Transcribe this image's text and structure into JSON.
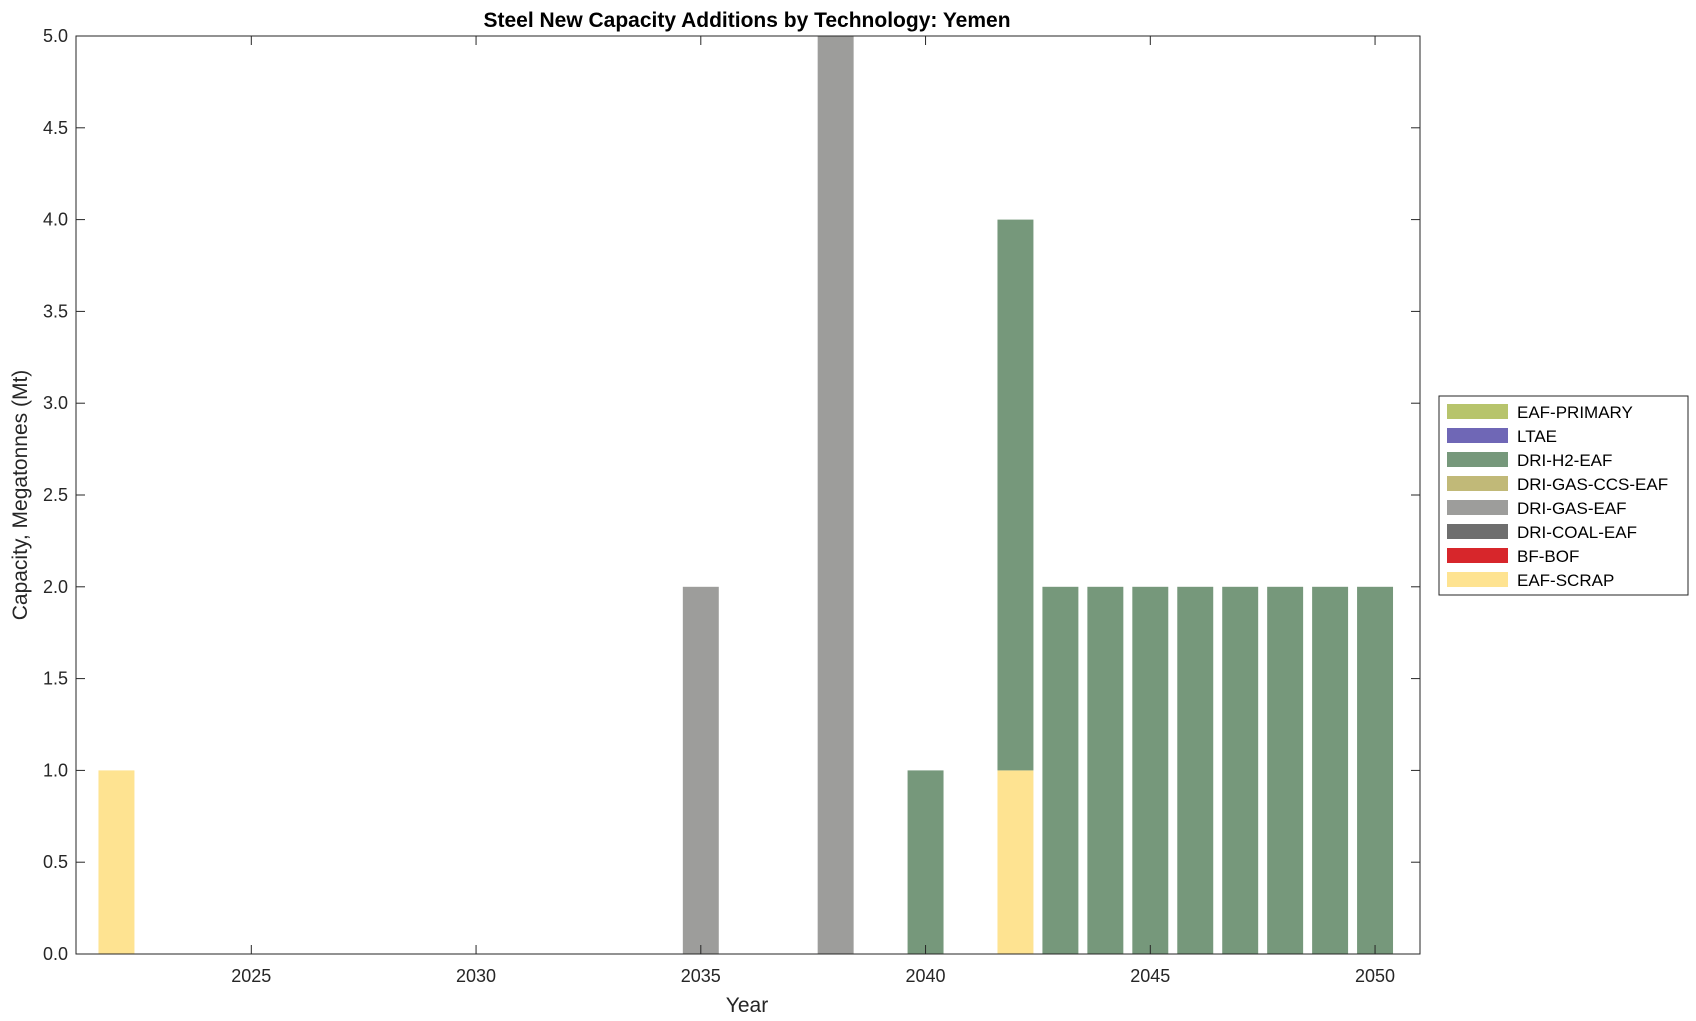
{
  "chart_data": {
    "type": "bar",
    "stacked": true,
    "title": "Steel New Capacity Additions by Technology: Yemen",
    "xlabel": "Year",
    "ylabel": "Capacity, Megatonnes (Mt)",
    "xlim": [
      2021.1,
      2051
    ],
    "ylim": [
      0,
      5
    ],
    "xticks": [
      2025,
      2030,
      2035,
      2040,
      2045,
      2050
    ],
    "yticks": [
      0,
      0.5,
      1,
      1.5,
      2,
      2.5,
      3,
      3.5,
      4,
      4.5,
      5
    ],
    "ytick_labels": [
      "0.0",
      "0.5",
      "1.0",
      "1.5",
      "2.0",
      "2.5",
      "3.0",
      "3.5",
      "4.0",
      "4.5",
      "5.0"
    ],
    "grid": false,
    "legend_position": "right",
    "categories": [
      2022,
      2023,
      2024,
      2025,
      2026,
      2027,
      2028,
      2029,
      2030,
      2031,
      2032,
      2033,
      2034,
      2035,
      2036,
      2037,
      2038,
      2039,
      2040,
      2041,
      2042,
      2043,
      2044,
      2045,
      2046,
      2047,
      2048,
      2049,
      2050
    ],
    "series": [
      {
        "name": "EAF-SCRAP",
        "color": "#fee391",
        "values": [
          1,
          0,
          0,
          0,
          0,
          0,
          0,
          0,
          0,
          0,
          0,
          0,
          0,
          0,
          0,
          0,
          0,
          0,
          0,
          0,
          1,
          0,
          0,
          0,
          0,
          0,
          0,
          0,
          0
        ]
      },
      {
        "name": "BF-BOF",
        "color": "#d7262b",
        "values": [
          0,
          0,
          0,
          0,
          0,
          0,
          0,
          0,
          0,
          0,
          0,
          0,
          0,
          0,
          0,
          0,
          0,
          0,
          0,
          0,
          0,
          0,
          0,
          0,
          0,
          0,
          0,
          0,
          0
        ]
      },
      {
        "name": "DRI-COAL-EAF",
        "color": "#6e6e6e",
        "values": [
          0,
          0,
          0,
          0,
          0,
          0,
          0,
          0,
          0,
          0,
          0,
          0,
          0,
          0,
          0,
          0,
          0,
          0,
          0,
          0,
          0,
          0,
          0,
          0,
          0,
          0,
          0,
          0,
          0
        ]
      },
      {
        "name": "DRI-GAS-EAF",
        "color": "#9d9d9b",
        "values": [
          0,
          0,
          0,
          0,
          0,
          0,
          0,
          0,
          0,
          0,
          0,
          0,
          0,
          2,
          0,
          0,
          5,
          0,
          0,
          0,
          0,
          0,
          0,
          0,
          0,
          0,
          0,
          0,
          0
        ]
      },
      {
        "name": "DRI-GAS-CCS-EAF",
        "color": "#c1b978",
        "values": [
          0,
          0,
          0,
          0,
          0,
          0,
          0,
          0,
          0,
          0,
          0,
          0,
          0,
          0,
          0,
          0,
          0,
          0,
          0,
          0,
          0,
          0,
          0,
          0,
          0,
          0,
          0,
          0,
          0
        ]
      },
      {
        "name": "DRI-H2-EAF",
        "color": "#76987b",
        "values": [
          0,
          0,
          0,
          0,
          0,
          0,
          0,
          0,
          0,
          0,
          0,
          0,
          0,
          0,
          0,
          0,
          0,
          0,
          1,
          0,
          3,
          2,
          2,
          2,
          2,
          2,
          2,
          2,
          2
        ]
      },
      {
        "name": "LTAE",
        "color": "#6f67b6",
        "values": [
          0,
          0,
          0,
          0,
          0,
          0,
          0,
          0,
          0,
          0,
          0,
          0,
          0,
          0,
          0,
          0,
          0,
          0,
          0,
          0,
          0,
          0,
          0,
          0,
          0,
          0,
          0,
          0,
          0
        ]
      },
      {
        "name": "EAF-PRIMARY",
        "color": "#b7c46c",
        "values": [
          0,
          0,
          0,
          0,
          0,
          0,
          0,
          0,
          0,
          0,
          0,
          0,
          0,
          0,
          0,
          0,
          0,
          0,
          0,
          0,
          0,
          0,
          0,
          0,
          0,
          0,
          0,
          0,
          0
        ]
      }
    ],
    "legend_order": [
      "EAF-PRIMARY",
      "LTAE",
      "DRI-H2-EAF",
      "DRI-GAS-CCS-EAF",
      "DRI-GAS-EAF",
      "DRI-COAL-EAF",
      "BF-BOF",
      "EAF-SCRAP"
    ]
  }
}
